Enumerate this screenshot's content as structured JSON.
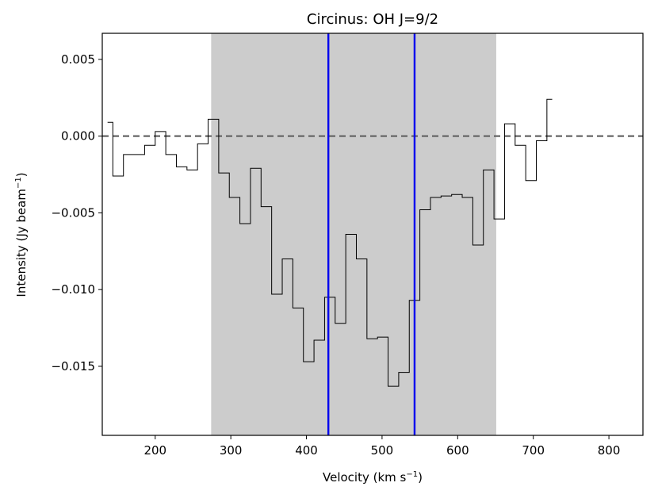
{
  "chart_data": {
    "type": "line",
    "title": "Circinus: OH J=9/2",
    "xlabel_main": "Velocity (km s",
    "xlabel_sup": "−1",
    "xlabel_end": ")",
    "ylabel_main": "Intensity (Jy beam",
    "ylabel_sup": "−1",
    "ylabel_end": ")",
    "xlim": [
      130,
      845
    ],
    "ylim": [
      -0.0195,
      0.0067
    ],
    "x_ticks": [
      200,
      300,
      400,
      500,
      600,
      700,
      800
    ],
    "x_tick_labels": [
      "200",
      "300",
      "400",
      "500",
      "600",
      "700",
      "800"
    ],
    "y_ticks": [
      0.005,
      0.0,
      -0.005,
      -0.01,
      -0.015
    ],
    "y_tick_labels": [
      "0.005",
      "0.000",
      "−0.005",
      "−0.010",
      "−0.015"
    ],
    "shaded_region": {
      "x0": 274,
      "x1": 651,
      "color": "#cccccc"
    },
    "vlines": [
      {
        "x": 429,
        "color": "#0000ee"
      },
      {
        "x": 543,
        "color": "#0000ee"
      }
    ],
    "hline": {
      "y": 0.0,
      "color": "#666666",
      "style": "dashed"
    },
    "spectrum": {
      "style": "step-mid",
      "color": "#000000",
      "x": [
        137,
        151,
        165,
        179,
        193,
        207,
        221,
        235,
        249,
        263,
        277,
        291,
        305,
        319,
        333,
        347,
        361,
        375,
        389,
        403,
        417,
        431,
        445,
        459,
        473,
        487,
        501,
        515,
        529,
        543,
        557,
        571,
        585,
        599,
        613,
        627,
        641,
        655,
        669,
        683,
        697,
        711,
        725
      ],
      "y": [
        0.0009,
        -0.0026,
        -0.0012,
        -0.0012,
        -0.0006,
        0.0003,
        -0.0012,
        -0.002,
        -0.0022,
        -0.0005,
        0.0011,
        -0.0024,
        -0.004,
        -0.0057,
        -0.0021,
        -0.0046,
        -0.0103,
        -0.008,
        -0.0112,
        -0.0147,
        -0.0133,
        -0.0105,
        -0.0122,
        -0.0064,
        -0.008,
        -0.0132,
        -0.0131,
        -0.0163,
        -0.0154,
        -0.0107,
        -0.0048,
        -0.004,
        -0.0039,
        -0.0038,
        -0.004,
        -0.0071,
        -0.0022,
        -0.0054,
        0.0008,
        -0.0006,
        -0.0029,
        -0.0003,
        0.0024
      ]
    }
  }
}
